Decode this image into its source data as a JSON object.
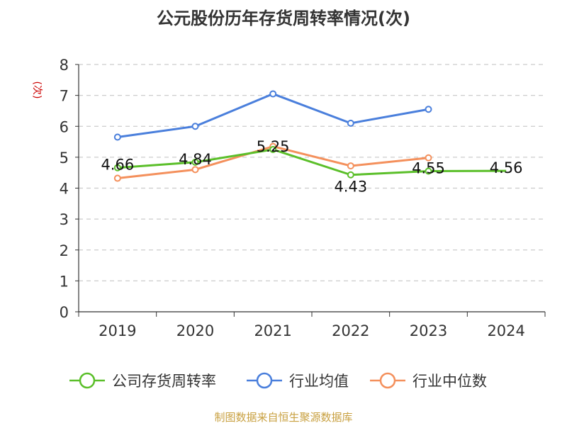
{
  "chart_data": {
    "type": "line",
    "title": "公元股份历年存货周转率情况(次)",
    "ylabel": "(次)",
    "xlabel": "",
    "categories": [
      "2019",
      "2020",
      "2021",
      "2022",
      "2023",
      "2024"
    ],
    "ylim": [
      0,
      8
    ],
    "yticks": [
      0,
      1,
      2,
      3,
      4,
      5,
      6,
      7,
      8
    ],
    "grid": true,
    "legend_position": "bottom",
    "series": [
      {
        "name": "公司存货周转率",
        "color": "#5bbf2a",
        "values": [
          4.66,
          4.84,
          5.25,
          4.43,
          4.55,
          4.56
        ],
        "labels": [
          "4.66",
          "4.84",
          "5.25",
          "4.43",
          "4.55",
          "4.56"
        ]
      },
      {
        "name": "行业均值",
        "color": "#4a7fdc",
        "values": [
          5.65,
          6.0,
          7.05,
          6.1,
          6.55,
          null
        ]
      },
      {
        "name": "行业中位数",
        "color": "#f4905c",
        "values": [
          4.32,
          4.6,
          5.35,
          4.72,
          4.98,
          null
        ]
      }
    ],
    "source": "制图数据来自恒生聚源数据库"
  },
  "colors": {
    "axis": "#333333",
    "grid": "#cccccc",
    "ylabel": "#cc0000",
    "source": "#c8a040"
  }
}
